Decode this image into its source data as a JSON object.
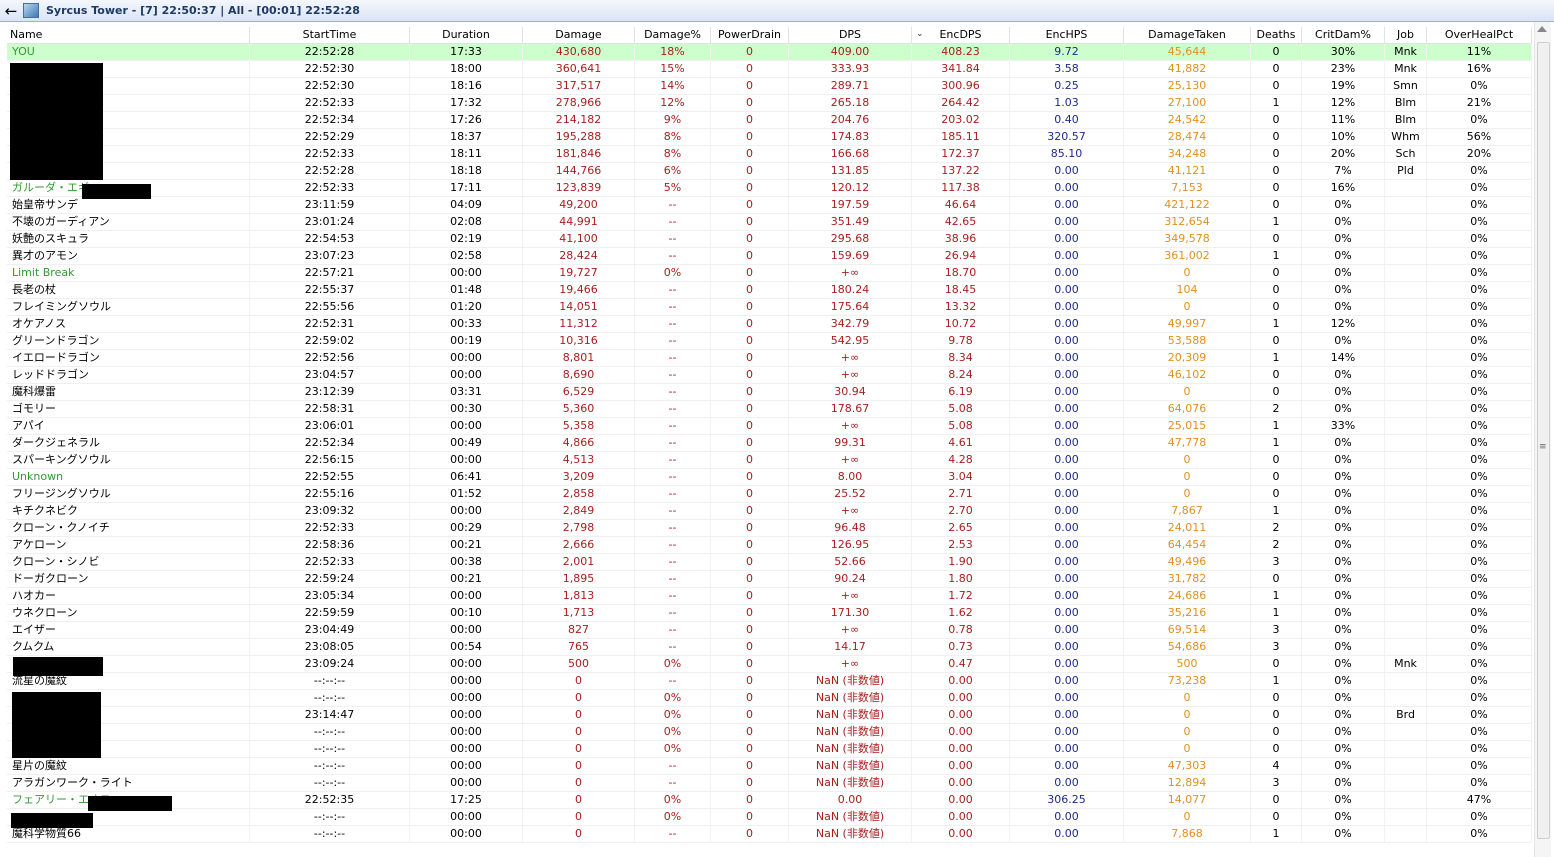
{
  "window": {
    "title": "Syrcus Tower - [7] 22:50:37 | All - [00:01] 22:52:28"
  },
  "columns": [
    "Name",
    "StartTime",
    "Duration",
    "Damage",
    "Damage%",
    "PowerDrain",
    "DPS",
    "EncDPS",
    "EncHPS",
    "DamageTaken",
    "Deaths",
    "CritDam%",
    "Job",
    "OverHealPct"
  ],
  "rows": [
    [
      "YOU",
      "22:52:28",
      "17:33",
      "430,680",
      "18%",
      "0",
      "409.00",
      "408.23",
      "9.72",
      "45,644",
      "0",
      "30%",
      "Mnk",
      "11%"
    ],
    [
      "",
      "22:52:30",
      "18:00",
      "360,641",
      "15%",
      "0",
      "333.93",
      "341.84",
      "3.58",
      "41,882",
      "0",
      "23%",
      "Mnk",
      "16%"
    ],
    [
      "",
      "22:52:30",
      "18:16",
      "317,517",
      "14%",
      "0",
      "289.71",
      "300.96",
      "0.25",
      "25,130",
      "0",
      "19%",
      "Smn",
      "0%"
    ],
    [
      "",
      "22:52:33",
      "17:32",
      "278,966",
      "12%",
      "0",
      "265.18",
      "264.42",
      "1.03",
      "27,100",
      "1",
      "12%",
      "Blm",
      "21%"
    ],
    [
      "",
      "22:52:34",
      "17:26",
      "214,182",
      "9%",
      "0",
      "204.76",
      "203.02",
      "0.40",
      "24,542",
      "0",
      "11%",
      "Blm",
      "0%"
    ],
    [
      "",
      "22:52:29",
      "18:37",
      "195,288",
      "8%",
      "0",
      "174.83",
      "185.11",
      "320.57",
      "28,474",
      "0",
      "10%",
      "Whm",
      "56%"
    ],
    [
      "",
      "22:52:33",
      "18:11",
      "181,846",
      "8%",
      "0",
      "166.68",
      "172.37",
      "85.10",
      "34,248",
      "0",
      "20%",
      "Sch",
      "20%"
    ],
    [
      "",
      "22:52:28",
      "18:18",
      "144,766",
      "6%",
      "0",
      "131.85",
      "137.22",
      "0.00",
      "41,121",
      "0",
      "7%",
      "Pld",
      "0%"
    ],
    [
      "ガルーダ・エギ",
      "22:52:33",
      "17:11",
      "123,839",
      "5%",
      "0",
      "120.12",
      "117.38",
      "0.00",
      "7,153",
      "0",
      "16%",
      "",
      "0%"
    ],
    [
      "始皇帝サンデ",
      "23:11:59",
      "04:09",
      "49,200",
      "--",
      "0",
      "197.59",
      "46.64",
      "0.00",
      "421,122",
      "0",
      "0%",
      "",
      "0%"
    ],
    [
      "不壊のガーディアン",
      "23:01:24",
      "02:08",
      "44,991",
      "--",
      "0",
      "351.49",
      "42.65",
      "0.00",
      "312,654",
      "1",
      "0%",
      "",
      "0%"
    ],
    [
      "妖艶のスキュラ",
      "22:54:53",
      "02:19",
      "41,100",
      "--",
      "0",
      "295.68",
      "38.96",
      "0.00",
      "349,578",
      "0",
      "0%",
      "",
      "0%"
    ],
    [
      "異才のアモン",
      "23:07:23",
      "02:58",
      "28,424",
      "--",
      "0",
      "159.69",
      "26.94",
      "0.00",
      "361,002",
      "1",
      "0%",
      "",
      "0%"
    ],
    [
      "Limit Break",
      "22:57:21",
      "00:00",
      "19,727",
      "0%",
      "0",
      "+∞",
      "18.70",
      "0.00",
      "0",
      "0",
      "0%",
      "",
      "0%"
    ],
    [
      "長老の杖",
      "22:55:37",
      "01:48",
      "19,466",
      "--",
      "0",
      "180.24",
      "18.45",
      "0.00",
      "104",
      "0",
      "0%",
      "",
      "0%"
    ],
    [
      "フレイミングソウル",
      "22:55:56",
      "01:20",
      "14,051",
      "--",
      "0",
      "175.64",
      "13.32",
      "0.00",
      "0",
      "0",
      "0%",
      "",
      "0%"
    ],
    [
      "オケアノス",
      "22:52:31",
      "00:33",
      "11,312",
      "--",
      "0",
      "342.79",
      "10.72",
      "0.00",
      "49,997",
      "1",
      "12%",
      "",
      "0%"
    ],
    [
      "グリーンドラゴン",
      "22:59:02",
      "00:19",
      "10,316",
      "--",
      "0",
      "542.95",
      "9.78",
      "0.00",
      "53,588",
      "0",
      "0%",
      "",
      "0%"
    ],
    [
      "イエロードラゴン",
      "22:52:56",
      "00:00",
      "8,801",
      "--",
      "0",
      "+∞",
      "8.34",
      "0.00",
      "20,309",
      "1",
      "14%",
      "",
      "0%"
    ],
    [
      "レッドドラゴン",
      "23:04:57",
      "00:00",
      "8,690",
      "--",
      "0",
      "+∞",
      "8.24",
      "0.00",
      "46,102",
      "0",
      "0%",
      "",
      "0%"
    ],
    [
      "魔科爆雷",
      "23:12:39",
      "03:31",
      "6,529",
      "--",
      "0",
      "30.94",
      "6.19",
      "0.00",
      "0",
      "0",
      "0%",
      "",
      "0%"
    ],
    [
      "ゴモリー",
      "22:58:31",
      "00:30",
      "5,360",
      "--",
      "0",
      "178.67",
      "5.08",
      "0.00",
      "64,076",
      "2",
      "0%",
      "",
      "0%"
    ],
    [
      "アパイ",
      "23:06:01",
      "00:00",
      "5,358",
      "--",
      "0",
      "+∞",
      "5.08",
      "0.00",
      "25,015",
      "1",
      "33%",
      "",
      "0%"
    ],
    [
      "ダークジェネラル",
      "22:52:34",
      "00:49",
      "4,866",
      "--",
      "0",
      "99.31",
      "4.61",
      "0.00",
      "47,778",
      "1",
      "0%",
      "",
      "0%"
    ],
    [
      "スパーキングソウル",
      "22:56:15",
      "00:00",
      "4,513",
      "--",
      "0",
      "+∞",
      "4.28",
      "0.00",
      "0",
      "0",
      "0%",
      "",
      "0%"
    ],
    [
      "Unknown",
      "22:52:55",
      "06:41",
      "3,209",
      "--",
      "0",
      "8.00",
      "3.04",
      "0.00",
      "0",
      "0",
      "0%",
      "",
      "0%"
    ],
    [
      "フリージングソウル",
      "22:55:16",
      "01:52",
      "2,858",
      "--",
      "0",
      "25.52",
      "2.71",
      "0.00",
      "0",
      "0",
      "0%",
      "",
      "0%"
    ],
    [
      "キチクネビク",
      "23:09:32",
      "00:00",
      "2,849",
      "--",
      "0",
      "+∞",
      "2.70",
      "0.00",
      "7,867",
      "1",
      "0%",
      "",
      "0%"
    ],
    [
      "クローン・クノイチ",
      "22:52:33",
      "00:29",
      "2,798",
      "--",
      "0",
      "96.48",
      "2.65",
      "0.00",
      "24,011",
      "2",
      "0%",
      "",
      "0%"
    ],
    [
      "アケローン",
      "22:58:36",
      "00:21",
      "2,666",
      "--",
      "0",
      "126.95",
      "2.53",
      "0.00",
      "64,454",
      "2",
      "0%",
      "",
      "0%"
    ],
    [
      "クローン・シノビ",
      "22:52:33",
      "00:38",
      "2,001",
      "--",
      "0",
      "52.66",
      "1.90",
      "0.00",
      "49,496",
      "3",
      "0%",
      "",
      "0%"
    ],
    [
      "ドーガクローン",
      "22:59:24",
      "00:21",
      "1,895",
      "--",
      "0",
      "90.24",
      "1.80",
      "0.00",
      "31,782",
      "0",
      "0%",
      "",
      "0%"
    ],
    [
      "ハオカー",
      "23:05:34",
      "00:00",
      "1,813",
      "--",
      "0",
      "+∞",
      "1.72",
      "0.00",
      "24,686",
      "1",
      "0%",
      "",
      "0%"
    ],
    [
      "ウネクローン",
      "22:59:59",
      "00:10",
      "1,713",
      "--",
      "0",
      "171.30",
      "1.62",
      "0.00",
      "35,216",
      "1",
      "0%",
      "",
      "0%"
    ],
    [
      "エイザー",
      "23:04:49",
      "00:00",
      "827",
      "--",
      "0",
      "+∞",
      "0.78",
      "0.00",
      "69,514",
      "3",
      "0%",
      "",
      "0%"
    ],
    [
      "クムクム",
      "23:08:05",
      "00:54",
      "765",
      "--",
      "0",
      "14.17",
      "0.73",
      "0.00",
      "54,686",
      "3",
      "0%",
      "",
      "0%"
    ],
    [
      "",
      "23:09:24",
      "00:00",
      "500",
      "0%",
      "0",
      "+∞",
      "0.47",
      "0.00",
      "500",
      "0",
      "0%",
      "Mnk",
      "0%"
    ],
    [
      "流星の魔紋",
      "--:--:--",
      "00:00",
      "0",
      "--",
      "0",
      "NaN (非数値)",
      "0.00",
      "0.00",
      "73,238",
      "1",
      "0%",
      "",
      "0%"
    ],
    [
      "",
      "--:--:--",
      "00:00",
      "0",
      "0%",
      "0",
      "NaN (非数値)",
      "0.00",
      "0.00",
      "0",
      "0",
      "0%",
      "",
      "0%"
    ],
    [
      "",
      "23:14:47",
      "00:00",
      "0",
      "0%",
      "0",
      "NaN (非数値)",
      "0.00",
      "0.00",
      "0",
      "0",
      "0%",
      "Brd",
      "0%"
    ],
    [
      "",
      "--:--:--",
      "00:00",
      "0",
      "0%",
      "0",
      "NaN (非数値)",
      "0.00",
      "0.00",
      "0",
      "0",
      "0%",
      "",
      "0%"
    ],
    [
      "",
      "--:--:--",
      "00:00",
      "0",
      "0%",
      "0",
      "NaN (非数値)",
      "0.00",
      "0.00",
      "0",
      "0",
      "0%",
      "",
      "0%"
    ],
    [
      "星片の魔紋",
      "--:--:--",
      "00:00",
      "0",
      "--",
      "0",
      "NaN (非数値)",
      "0.00",
      "0.00",
      "47,303",
      "4",
      "0%",
      "",
      "0%"
    ],
    [
      "アラガンワーク・ライト",
      "--:--:--",
      "00:00",
      "0",
      "--",
      "0",
      "NaN (非数値)",
      "0.00",
      "0.00",
      "12,894",
      "3",
      "0%",
      "",
      "0%"
    ],
    [
      "フェアリー・エオス",
      "22:52:35",
      "17:25",
      "0",
      "0%",
      "0",
      "0.00",
      "0.00",
      "306.25",
      "14,077",
      "0",
      "0%",
      "",
      "47%"
    ],
    [
      "",
      "--:--:--",
      "00:00",
      "0",
      "0%",
      "0",
      "NaN (非数値)",
      "0.00",
      "0.00",
      "0",
      "0",
      "0%",
      "",
      "0%"
    ],
    [
      "魔科学物質66",
      "--:--:--",
      "00:00",
      "0",
      "--",
      "0",
      "NaN (非数値)",
      "0.00",
      "0.00",
      "7,868",
      "1",
      "0%",
      "",
      "0%"
    ]
  ]
}
